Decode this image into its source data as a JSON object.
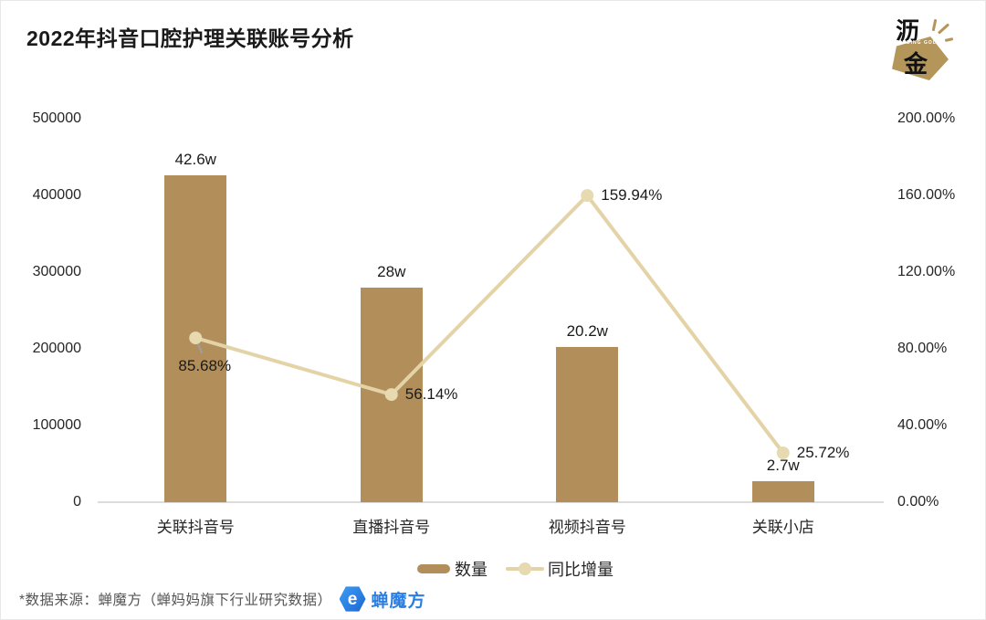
{
  "header": {
    "title": "2022年抖音口腔护理关联账号分析",
    "logo": {
      "char1": "沥",
      "char2": "金",
      "subtext": "FINDING GOLD"
    }
  },
  "footer": {
    "note": "*数据来源：蝉魔方（蝉妈妈旗下行业研究数据）",
    "brand": "蝉魔方",
    "brand_icon_glyph": "e"
  },
  "colors": {
    "bar": "#b28e5a",
    "line": "#e3d3a6",
    "marker": "#e7d9b0",
    "baseline": "#dcdcdc",
    "gold_logo": "#b5965a",
    "brand_blue": "#2b7fe3",
    "axis_text": "#262626"
  },
  "chart_data": {
    "type": "bar",
    "subtype": "bar-line-combo",
    "title": "2022年抖音口腔护理关联账号分析",
    "categories": [
      "关联抖音号",
      "直播抖音号",
      "视频抖音号",
      "关联小店"
    ],
    "series": [
      {
        "name": "数量",
        "type": "bar",
        "axis": "left",
        "values": [
          426000,
          280000,
          202000,
          27000
        ],
        "labels": [
          "42.6w",
          "28w",
          "20.2w",
          "2.7w"
        ]
      },
      {
        "name": "同比增量",
        "type": "line",
        "axis": "right",
        "values": [
          85.68,
          56.14,
          159.94,
          25.72
        ],
        "labels": [
          "85.68%",
          "56.14%",
          "159.94%",
          "25.72%"
        ]
      }
    ],
    "left_axis": {
      "min": 0,
      "max": 500000,
      "ticks": [
        "0",
        "100000",
        "200000",
        "300000",
        "400000",
        "500000"
      ]
    },
    "right_axis": {
      "min": 0,
      "max": 200,
      "ticks": [
        "0.00%",
        "40.00%",
        "80.00%",
        "120.00%",
        "160.00%",
        "200.00%"
      ]
    },
    "grid": false,
    "legend_position": "bottom"
  }
}
